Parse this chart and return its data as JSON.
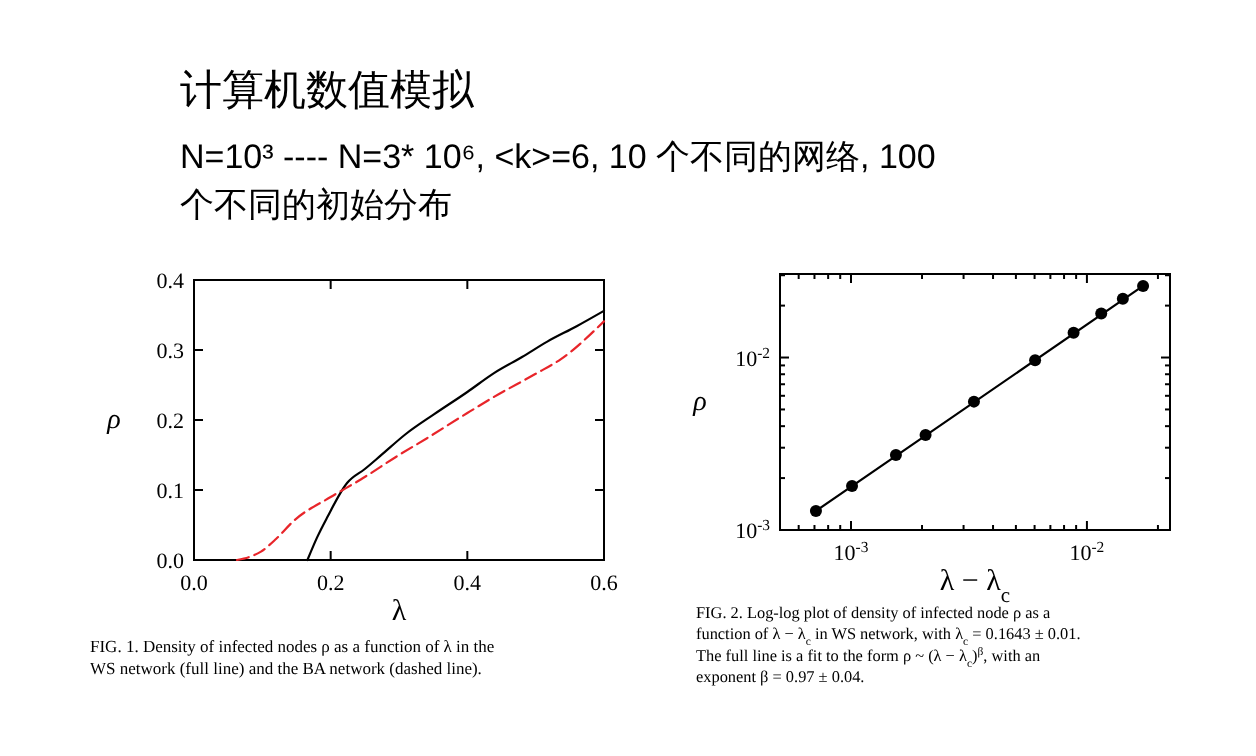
{
  "chart_data": [
    {
      "type": "line",
      "title": "计算机数值模拟",
      "subtitle": "N=10³ ---- N=3* 10⁶, <k>=6,  10 个不同的网络, 100 个不同的初始分布",
      "xlabel": "λ",
      "ylabel": "ρ",
      "xlim": [
        0,
        0.6
      ],
      "ylim": [
        0,
        0.4
      ],
      "xticks": [
        {
          "value": 0,
          "label": "0.0"
        },
        {
          "value": 0.2,
          "label": "0.2"
        },
        {
          "value": 0.4,
          "label": "0.4"
        },
        {
          "value": 0.6,
          "label": "0.6"
        }
      ],
      "yticks": [
        {
          "value": 0,
          "label": "0.0"
        },
        {
          "value": 0.1,
          "label": "0.1"
        },
        {
          "value": 0.2,
          "label": "0.2"
        },
        {
          "value": 0.3,
          "label": "0.3"
        },
        {
          "value": 0.4,
          "label": "0.4"
        }
      ],
      "series": [
        {
          "color": "#000000",
          "line_style": "solid",
          "x": [
            0.166,
            0.18,
            0.195,
            0.224,
            0.25,
            0.273,
            0.31,
            0.351,
            0.4,
            0.439,
            0.48,
            0.517,
            0.56,
            0.6
          ],
          "values": [
            0,
            0.032,
            0.061,
            0.11,
            0.13,
            0.149,
            0.18,
            0.208,
            0.24,
            0.267,
            0.29,
            0.312,
            0.334,
            0.356
          ]
        },
        {
          "color": "#e8252a",
          "line_style": "dashed",
          "x": [
            0.063,
            0.08,
            0.098,
            0.12,
            0.146,
            0.2,
            0.244,
            0.3,
            0.341,
            0.4,
            0.439,
            0.5,
            0.537,
            0.6
          ],
          "values": [
            0,
            0.004,
            0.012,
            0.03,
            0.056,
            0.09,
            0.115,
            0.15,
            0.174,
            0.21,
            0.233,
            0.266,
            0.287,
            0.341
          ]
        }
      ],
      "annotations": [
        "FIG. 1.  Density of infected nodes ρ as a function of λ in the WS network (full line) and the BA network (dashed line)."
      ]
    },
    {
      "type": "scatter",
      "xlabel": "λ − λ$_{c}$",
      "ylabel": "ρ",
      "log": "xy",
      "marker": "circle",
      "xlim": [
        0.0005,
        0.0225
      ],
      "ylim": [
        0.001,
        0.0305
      ],
      "xticks": [
        {
          "value": 0.0006,
          "label": null
        },
        {
          "value": 0.0007,
          "label": null
        },
        {
          "value": 0.0008,
          "label": null
        },
        {
          "value": 0.0009,
          "label": null
        },
        {
          "value": 0.001,
          "label": "10$^{-3}$"
        },
        {
          "value": 0.002,
          "label": null
        },
        {
          "value": 0.003,
          "label": null
        },
        {
          "value": 0.004,
          "label": null
        },
        {
          "value": 0.005,
          "label": null
        },
        {
          "value": 0.006,
          "label": null
        },
        {
          "value": 0.007,
          "label": null
        },
        {
          "value": 0.008,
          "label": null
        },
        {
          "value": 0.009,
          "label": null
        },
        {
          "value": 0.01,
          "label": "10$^{-2}$"
        },
        {
          "value": 0.02,
          "label": null
        }
      ],
      "yticks": [
        {
          "value": 0.001,
          "label": "10$^{-3}$"
        },
        {
          "value": 0.002,
          "label": null
        },
        {
          "value": 0.003,
          "label": null
        },
        {
          "value": 0.004,
          "label": null
        },
        {
          "value": 0.005,
          "label": null
        },
        {
          "value": 0.006,
          "label": null
        },
        {
          "value": 0.007,
          "label": null
        },
        {
          "value": 0.008,
          "label": null
        },
        {
          "value": 0.009,
          "label": null
        },
        {
          "value": 0.01,
          "label": "10$^{-2}$"
        },
        {
          "value": 0.02,
          "label": null
        },
        {
          "value": 0.03,
          "label": null
        }
      ],
      "series": [
        {
          "type": "line",
          "color": "#000000",
          "line_style": "solid",
          "marker": "none",
          "x": [
            0.00071,
            0.0173
          ],
          "values": [
            0.00129,
            0.026
          ]
        },
        {
          "color": "#000000",
          "x": [
            0.00071,
            0.00101,
            0.00155,
            0.00207,
            0.00332,
            0.00603,
            0.00878,
            0.0115,
            0.0142,
            0.0173
          ],
          "values": [
            0.00129,
            0.0018,
            0.00272,
            0.00355,
            0.00555,
            0.00964,
            0.0139,
            0.018,
            0.0219,
            0.026
          ]
        }
      ],
      "annotations": [
        "FIG. 2.  Log-log plot of density of infected node ρ as a function of λ − λ$_{c}$ in WS network, with λ$_{c}$ = 0.1643 ± 0.01. The full line is a fit to the form ρ ~ (λ − λ$_{c}$)$^{β}$, with an exponent β = 0.97 ± 0.04."
      ]
    }
  ]
}
